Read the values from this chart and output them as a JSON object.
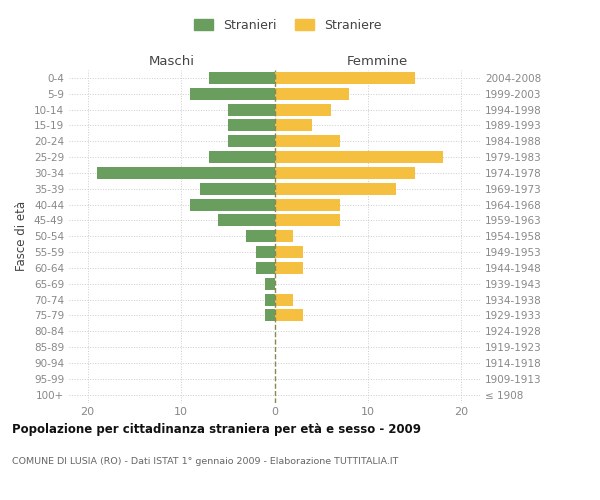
{
  "age_groups": [
    "100+",
    "95-99",
    "90-94",
    "85-89",
    "80-84",
    "75-79",
    "70-74",
    "65-69",
    "60-64",
    "55-59",
    "50-54",
    "45-49",
    "40-44",
    "35-39",
    "30-34",
    "25-29",
    "20-24",
    "15-19",
    "10-14",
    "5-9",
    "0-4"
  ],
  "birth_years": [
    "≤ 1908",
    "1909-1913",
    "1914-1918",
    "1919-1923",
    "1924-1928",
    "1929-1933",
    "1934-1938",
    "1939-1943",
    "1944-1948",
    "1949-1953",
    "1954-1958",
    "1959-1963",
    "1964-1968",
    "1969-1973",
    "1974-1978",
    "1979-1983",
    "1984-1988",
    "1989-1993",
    "1994-1998",
    "1999-2003",
    "2004-2008"
  ],
  "maschi": [
    0,
    0,
    0,
    0,
    0,
    1,
    1,
    1,
    2,
    2,
    3,
    6,
    9,
    8,
    19,
    7,
    5,
    5,
    5,
    9,
    7
  ],
  "femmine": [
    0,
    0,
    0,
    0,
    0,
    3,
    2,
    0,
    3,
    3,
    2,
    7,
    7,
    13,
    15,
    18,
    7,
    4,
    6,
    8,
    15
  ],
  "maschi_color": "#6a9e5e",
  "femmine_color": "#f5c040",
  "title": "Popolazione per cittadinanza straniera per età e sesso - 2009",
  "subtitle": "COMUNE DI LUSIA (RO) - Dati ISTAT 1° gennaio 2009 - Elaborazione TUTTITALIA.IT",
  "ylabel_left": "Fasce di età",
  "header_maschi": "Maschi",
  "header_femmine": "Femmine",
  "legend_stranieri": "Stranieri",
  "legend_straniere": "Straniere",
  "xlim": 22,
  "background_color": "#ffffff",
  "grid_color": "#cccccc",
  "bar_height": 0.75,
  "tick_color": "#888888",
  "label_color": "#444444",
  "title_color": "#111111",
  "subtitle_color": "#666666"
}
